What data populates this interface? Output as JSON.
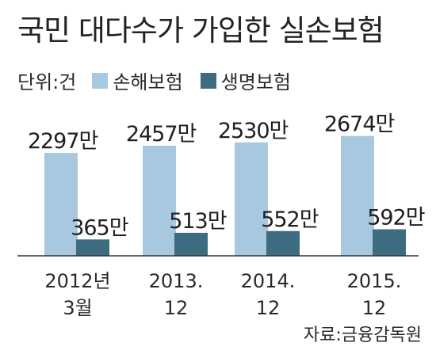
{
  "title": "국민 대다수가 가입한 실손보험",
  "unit_label": "단위:건",
  "source": "자료:금융감독원",
  "colors": {
    "series_1": "#a8c8e0",
    "series_2": "#3d6b80",
    "axis": "#333333"
  },
  "chart_data": {
    "type": "bar",
    "categories": [
      "2012년\n3월",
      "2013.\n12",
      "2014.\n12",
      "2015.\n12"
    ],
    "series": [
      {
        "name": "손해보험",
        "values": [
          2297,
          2457,
          2530,
          2674
        ],
        "labels": [
          "2297만",
          "2457만",
          "2530만",
          "2674만"
        ]
      },
      {
        "name": "생명보험",
        "values": [
          365,
          513,
          552,
          592
        ],
        "labels": [
          "365만",
          "513만",
          "552만",
          "592만"
        ]
      }
    ],
    "legend_position": "top-left",
    "grid": false
  }
}
